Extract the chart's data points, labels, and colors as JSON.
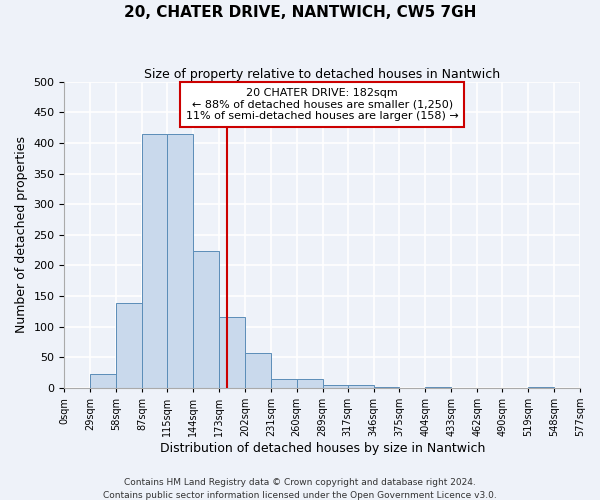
{
  "title": "20, CHATER DRIVE, NANTWICH, CW5 7GH",
  "subtitle": "Size of property relative to detached houses in Nantwich",
  "xlabel": "Distribution of detached houses by size in Nantwich",
  "ylabel": "Number of detached properties",
  "footer_lines": [
    "Contains HM Land Registry data © Crown copyright and database right 2024.",
    "Contains public sector information licensed under the Open Government Licence v3.0."
  ],
  "bin_edges": [
    0,
    29,
    58,
    87,
    115,
    144,
    173,
    202,
    231,
    260,
    289,
    317,
    346,
    375,
    404,
    433,
    462,
    490,
    519,
    548,
    577
  ],
  "bin_labels": [
    "0sqm",
    "29sqm",
    "58sqm",
    "87sqm",
    "115sqm",
    "144sqm",
    "173sqm",
    "202sqm",
    "231sqm",
    "260sqm",
    "289sqm",
    "317sqm",
    "346sqm",
    "375sqm",
    "404sqm",
    "433sqm",
    "462sqm",
    "490sqm",
    "519sqm",
    "548sqm",
    "577sqm"
  ],
  "counts": [
    0,
    22,
    138,
    414,
    414,
    224,
    115,
    57,
    14,
    15,
    5,
    5,
    1,
    0,
    1,
    0,
    0,
    0,
    1,
    0
  ],
  "bar_color": "#c9d9ec",
  "bar_edge_color": "#5b8db8",
  "property_value": 182,
  "vline_color": "#cc0000",
  "annotation_title": "20 CHATER DRIVE: 182sqm",
  "annotation_line1": "← 88% of detached houses are smaller (1,250)",
  "annotation_line2": "11% of semi-detached houses are larger (158) →",
  "annotation_box_color": "#ffffff",
  "annotation_box_edge_color": "#cc0000",
  "ylim": [
    0,
    500
  ],
  "background_color": "#eef2f9",
  "grid_color": "#ffffff",
  "yticks": [
    0,
    50,
    100,
    150,
    200,
    250,
    300,
    350,
    400,
    450,
    500
  ]
}
